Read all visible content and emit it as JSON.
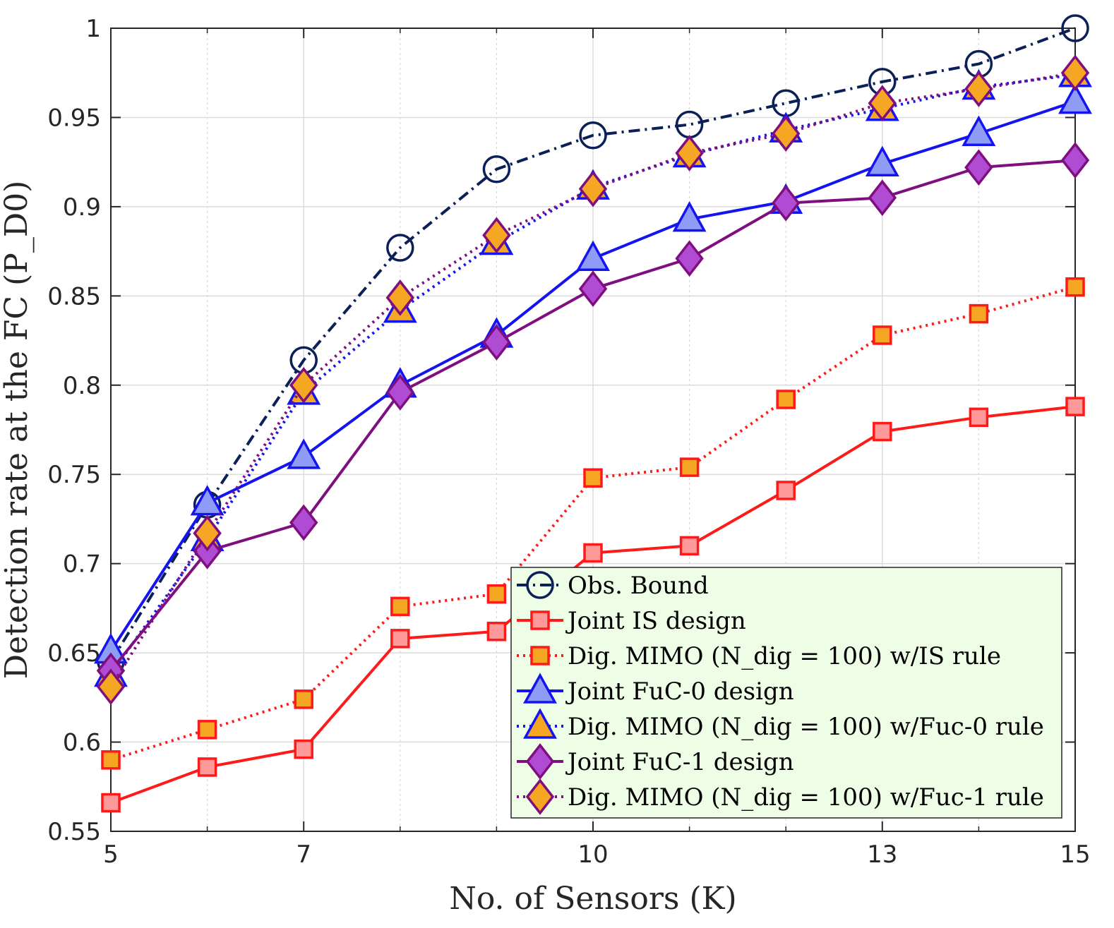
{
  "chart_data": {
    "type": "line",
    "title": "",
    "xlabel": "No. of Sensors (K)",
    "ylabel": "Detection rate at the FC (P_D0)",
    "xlim": [
      5,
      15
    ],
    "ylim": [
      0.55,
      1
    ],
    "xticks": [
      5,
      7,
      10,
      13,
      15
    ],
    "yticks": [
      0.55,
      0.6,
      0.65,
      0.7,
      0.75,
      0.8,
      0.85,
      0.9,
      0.95,
      1
    ],
    "xtick_labels": [
      "5",
      "7",
      "10",
      "13",
      "15"
    ],
    "ytick_labels": [
      "0.55",
      "0.6",
      "0.65",
      "0.7",
      "0.75",
      "0.8",
      "0.85",
      "0.9",
      "0.95",
      "1"
    ],
    "grid": true,
    "legend_position": "bottom-right",
    "x": [
      5,
      6,
      7,
      8,
      9,
      10,
      11,
      12,
      13,
      14,
      15
    ],
    "series": [
      {
        "name": "Obs. Bound",
        "values": [
          0.645,
          0.733,
          0.814,
          0.877,
          0.921,
          0.94,
          0.946,
          0.958,
          0.97,
          0.98,
          1.0
        ],
        "line": "dashdot",
        "marker": "circle",
        "color": "#0a2056",
        "fill": "none"
      },
      {
        "name": "Joint IS design",
        "values": [
          0.566,
          0.586,
          0.596,
          0.658,
          0.662,
          0.706,
          0.71,
          0.741,
          0.774,
          0.782,
          0.788
        ],
        "line": "solid",
        "marker": "square",
        "color": "#ff1a1a",
        "fill": "#ff9a9a"
      },
      {
        "name": "Dig. MIMO (N_dig = 100) w/IS rule",
        "values": [
          0.59,
          0.607,
          0.624,
          0.676,
          0.683,
          0.748,
          0.754,
          0.792,
          0.828,
          0.84,
          0.855
        ],
        "line": "dotted",
        "marker": "square",
        "color": "#ff1a1a",
        "fill": "#f5a623"
      },
      {
        "name": "Joint FuC-0 design",
        "values": [
          0.651,
          0.734,
          0.76,
          0.8,
          0.828,
          0.871,
          0.893,
          0.903,
          0.924,
          0.941,
          0.959
        ],
        "line": "solid",
        "marker": "triangle",
        "color": "#1414f0",
        "fill": "#8f9cf5"
      },
      {
        "name": "Dig. MIMO (N_dig = 100) w/Fuc-0 rule",
        "values": [
          0.638,
          0.714,
          0.796,
          0.842,
          0.88,
          0.911,
          0.929,
          0.943,
          0.955,
          0.967,
          0.974
        ],
        "line": "dotted",
        "marker": "triangle",
        "color": "#1414f0",
        "fill": "#f5a623"
      },
      {
        "name": "Joint FuC-1 design",
        "values": [
          0.64,
          0.707,
          0.723,
          0.796,
          0.824,
          0.854,
          0.871,
          0.902,
          0.905,
          0.922,
          0.926
        ],
        "line": "solid",
        "marker": "diamond",
        "color": "#7f0f7f",
        "fill": "#b04cd4"
      },
      {
        "name": "Dig. MIMO (N_dig = 100) w/Fuc-1 rule",
        "values": [
          0.631,
          0.717,
          0.8,
          0.849,
          0.884,
          0.91,
          0.93,
          0.941,
          0.958,
          0.966,
          0.975
        ],
        "line": "dotted",
        "marker": "diamond",
        "color": "#7f0f7f",
        "fill": "#f5a623"
      }
    ]
  }
}
